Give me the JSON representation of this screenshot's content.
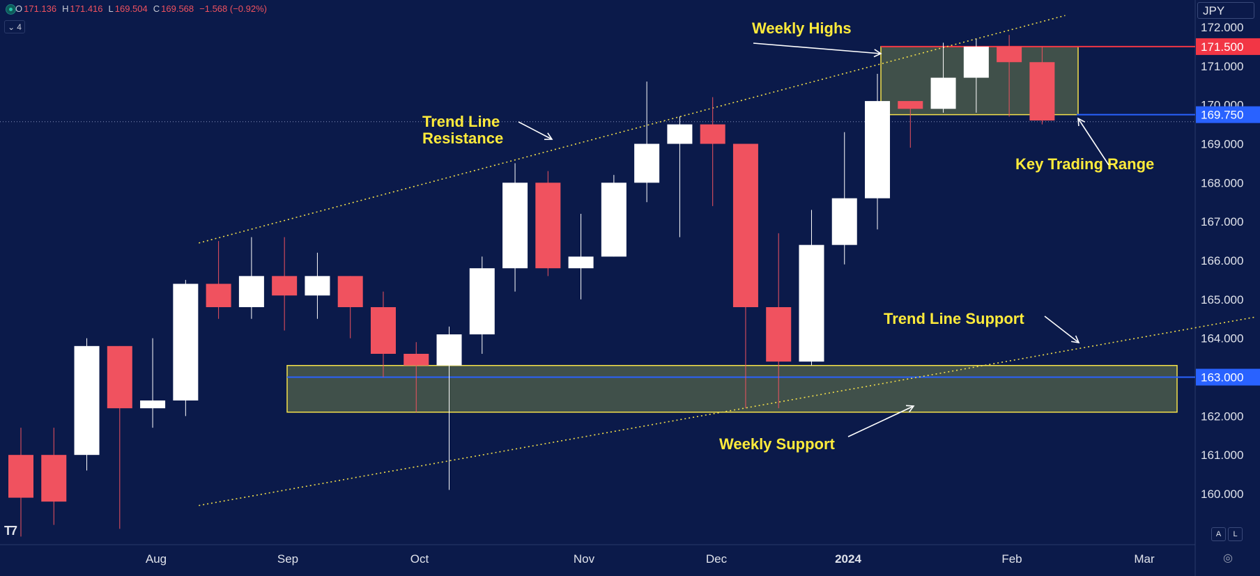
{
  "header": {
    "ohlc": [
      {
        "key": "O",
        "value": "171.136"
      },
      {
        "key": "H",
        "value": "171.416"
      },
      {
        "key": "L",
        "value": "169.504"
      },
      {
        "key": "C",
        "value": "169.568"
      }
    ],
    "change": "−1.568 (−0.92%)",
    "indicator_count": "4",
    "currency": "JPY"
  },
  "chart_data": {
    "type": "candlestick",
    "y_range": [
      159.7,
      172.35
    ],
    "y_ticks": [
      "172.000",
      "171.000",
      "170.000",
      "169.000",
      "168.000",
      "167.000",
      "166.000",
      "165.000",
      "164.000",
      "163.000",
      "162.000",
      "161.000",
      "160.000"
    ],
    "x_labels": [
      "Aug",
      "Sep",
      "Oct",
      "Nov",
      "Dec",
      "2024",
      "Feb",
      "Mar"
    ],
    "candles": [
      {
        "o": 161.0,
        "h": 161.7,
        "l": 158.9,
        "c": 159.9
      },
      {
        "o": 161.0,
        "h": 161.7,
        "l": 159.2,
        "c": 159.8
      },
      {
        "o": 161.0,
        "h": 164.0,
        "l": 160.6,
        "c": 163.8
      },
      {
        "o": 163.8,
        "h": 163.8,
        "l": 159.1,
        "c": 162.2
      },
      {
        "o": 162.2,
        "h": 164.0,
        "l": 161.7,
        "c": 162.4
      },
      {
        "o": 162.4,
        "h": 165.5,
        "l": 162.0,
        "c": 165.4
      },
      {
        "o": 165.4,
        "h": 166.5,
        "l": 164.5,
        "c": 164.8
      },
      {
        "o": 164.8,
        "h": 166.6,
        "l": 164.5,
        "c": 165.6
      },
      {
        "o": 165.6,
        "h": 166.6,
        "l": 164.2,
        "c": 165.1
      },
      {
        "o": 165.1,
        "h": 166.2,
        "l": 164.5,
        "c": 165.6
      },
      {
        "o": 165.6,
        "h": 165.6,
        "l": 164.0,
        "c": 164.8
      },
      {
        "o": 164.8,
        "h": 165.2,
        "l": 163.0,
        "c": 163.6
      },
      {
        "o": 163.6,
        "h": 163.9,
        "l": 162.1,
        "c": 163.3
      },
      {
        "o": 163.3,
        "h": 164.3,
        "l": 160.1,
        "c": 164.1
      },
      {
        "o": 164.1,
        "h": 166.1,
        "l": 163.6,
        "c": 165.8
      },
      {
        "o": 165.8,
        "h": 168.5,
        "l": 165.2,
        "c": 168.0
      },
      {
        "o": 168.0,
        "h": 168.3,
        "l": 165.6,
        "c": 165.8
      },
      {
        "o": 165.8,
        "h": 167.2,
        "l": 165.0,
        "c": 166.1
      },
      {
        "o": 166.1,
        "h": 168.2,
        "l": 166.1,
        "c": 168.0
      },
      {
        "o": 168.0,
        "h": 170.6,
        "l": 167.5,
        "c": 169.0
      },
      {
        "o": 169.0,
        "h": 169.7,
        "l": 166.6,
        "c": 169.5
      },
      {
        "o": 169.5,
        "h": 170.2,
        "l": 167.4,
        "c": 169.0
      },
      {
        "o": 169.0,
        "h": 169.0,
        "l": 162.2,
        "c": 164.8
      },
      {
        "o": 164.8,
        "h": 166.7,
        "l": 162.2,
        "c": 163.4
      },
      {
        "o": 163.4,
        "h": 167.3,
        "l": 163.3,
        "c": 166.4
      },
      {
        "o": 166.4,
        "h": 169.3,
        "l": 165.9,
        "c": 167.6
      },
      {
        "o": 167.6,
        "h": 170.8,
        "l": 166.8,
        "c": 170.1
      },
      {
        "o": 170.1,
        "h": 170.1,
        "l": 168.9,
        "c": 169.9
      },
      {
        "o": 169.9,
        "h": 171.6,
        "l": 169.8,
        "c": 170.7
      },
      {
        "o": 170.7,
        "h": 171.7,
        "l": 169.8,
        "c": 171.5
      },
      {
        "o": 171.5,
        "h": 171.8,
        "l": 169.7,
        "c": 171.1
      },
      {
        "o": 171.1,
        "h": 171.5,
        "l": 169.5,
        "c": 169.6
      }
    ],
    "price_tags": [
      {
        "value": 171.5,
        "label": "171.500",
        "color": "#f23645"
      },
      {
        "value": 169.75,
        "label": "169.750",
        "color": "#2962ff"
      },
      {
        "value": 163.0,
        "label": "163.000",
        "color": "#2962ff"
      }
    ],
    "zones": [
      {
        "from": 169.75,
        "to": 171.5,
        "name": "Key Trading Range"
      },
      {
        "from": 162.1,
        "to": 163.3,
        "name": "Weekly Support"
      }
    ],
    "trend_lines": [
      {
        "name": "Trend Line Resistance",
        "from": {
          "candle": 5.4,
          "value": 166.45
        },
        "to": {
          "candle": 31.7,
          "value": 172.3
        }
      },
      {
        "name": "Trend Line Support",
        "from": {
          "candle": 5.4,
          "value": 159.7
        },
        "to": {
          "candle": 37.5,
          "value": 164.55
        }
      }
    ],
    "annotations": [
      "Weekly Highs",
      "Trend Line Resistance",
      "Key Trading Range",
      "Trend Line Support",
      "Weekly Support"
    ],
    "last_price": 169.568,
    "colors": {
      "up": "#ffffff",
      "down": "#f0525f",
      "background": "#0b1a4a",
      "annotation": "#ffeb3b",
      "axis_text": "#e0e3eb"
    }
  },
  "footer": {
    "auto_label": "A",
    "log_label": "L"
  }
}
